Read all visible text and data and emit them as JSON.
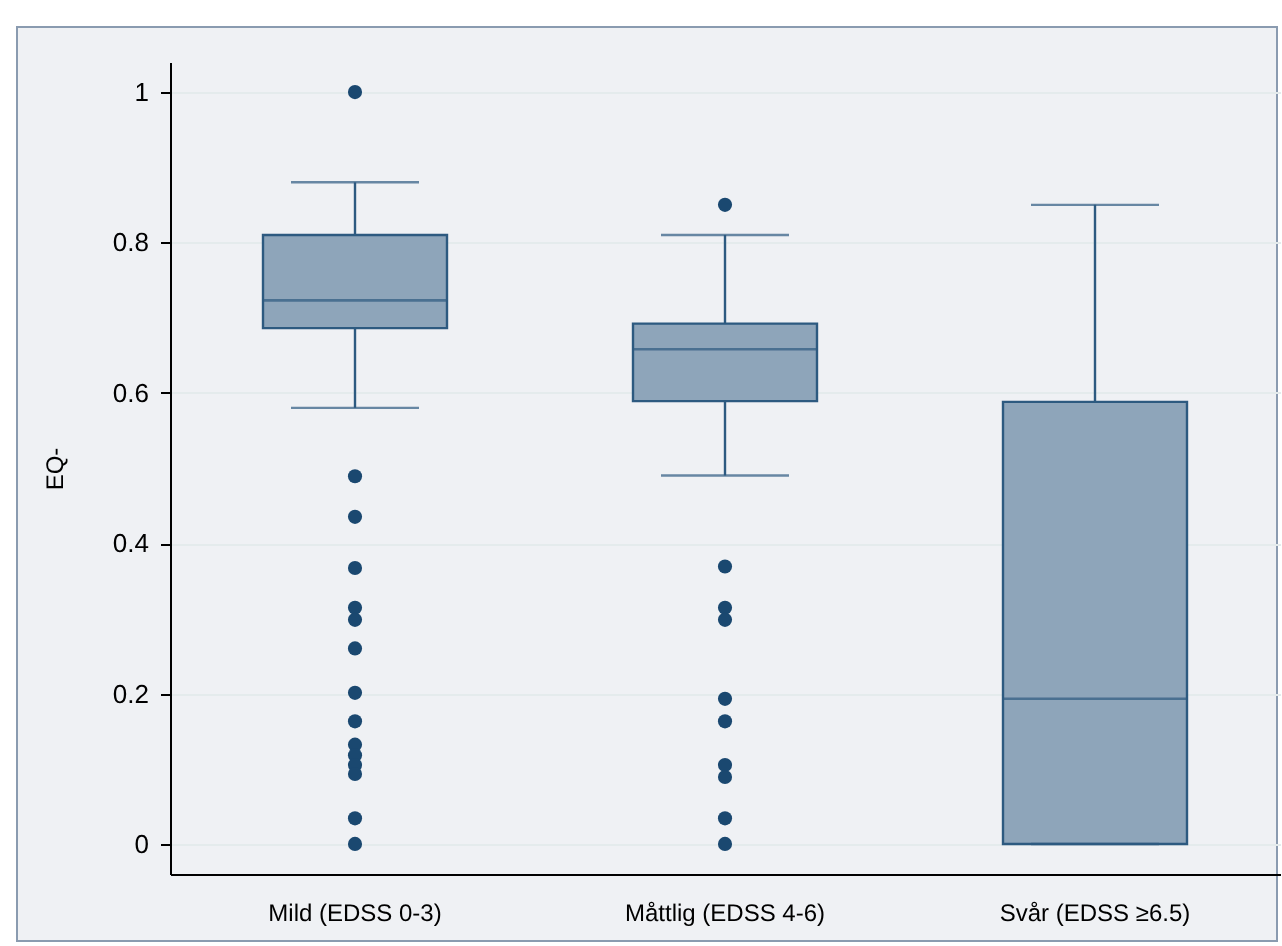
{
  "chart_data": {
    "type": "box",
    "ylabel": "EQ-",
    "categories": [
      "Mild (EDSS 0-3)",
      "Måttlig (EDSS 4-6)",
      "Svår (EDSS ≥6.5)"
    ],
    "color": "#8ea5ba",
    "boxes": [
      {
        "low": 0.58,
        "q1": 0.686,
        "median": 0.723,
        "q3": 0.81,
        "high": 0.88,
        "outliers": [
          1.0,
          0.489,
          0.435,
          0.367,
          0.314,
          0.298,
          0.26,
          0.201,
          0.163,
          0.132,
          0.118,
          0.105,
          0.093,
          0.034,
          0.0
        ]
      },
      {
        "low": 0.49,
        "q1": 0.589,
        "median": 0.658,
        "q3": 0.692,
        "high": 0.81,
        "outliers": [
          0.85,
          0.369,
          0.314,
          0.298,
          0.193,
          0.163,
          0.105,
          0.089,
          0.034,
          0.0
        ]
      },
      {
        "low": 0.0,
        "q1": 0.0,
        "median": 0.193,
        "q3": 0.588,
        "high": 0.85
      }
    ],
    "ylim": [
      -0.04,
      1.04
    ],
    "yticks": [
      0,
      0.2,
      0.4,
      0.6,
      0.8,
      1
    ],
    "grid": "y"
  }
}
